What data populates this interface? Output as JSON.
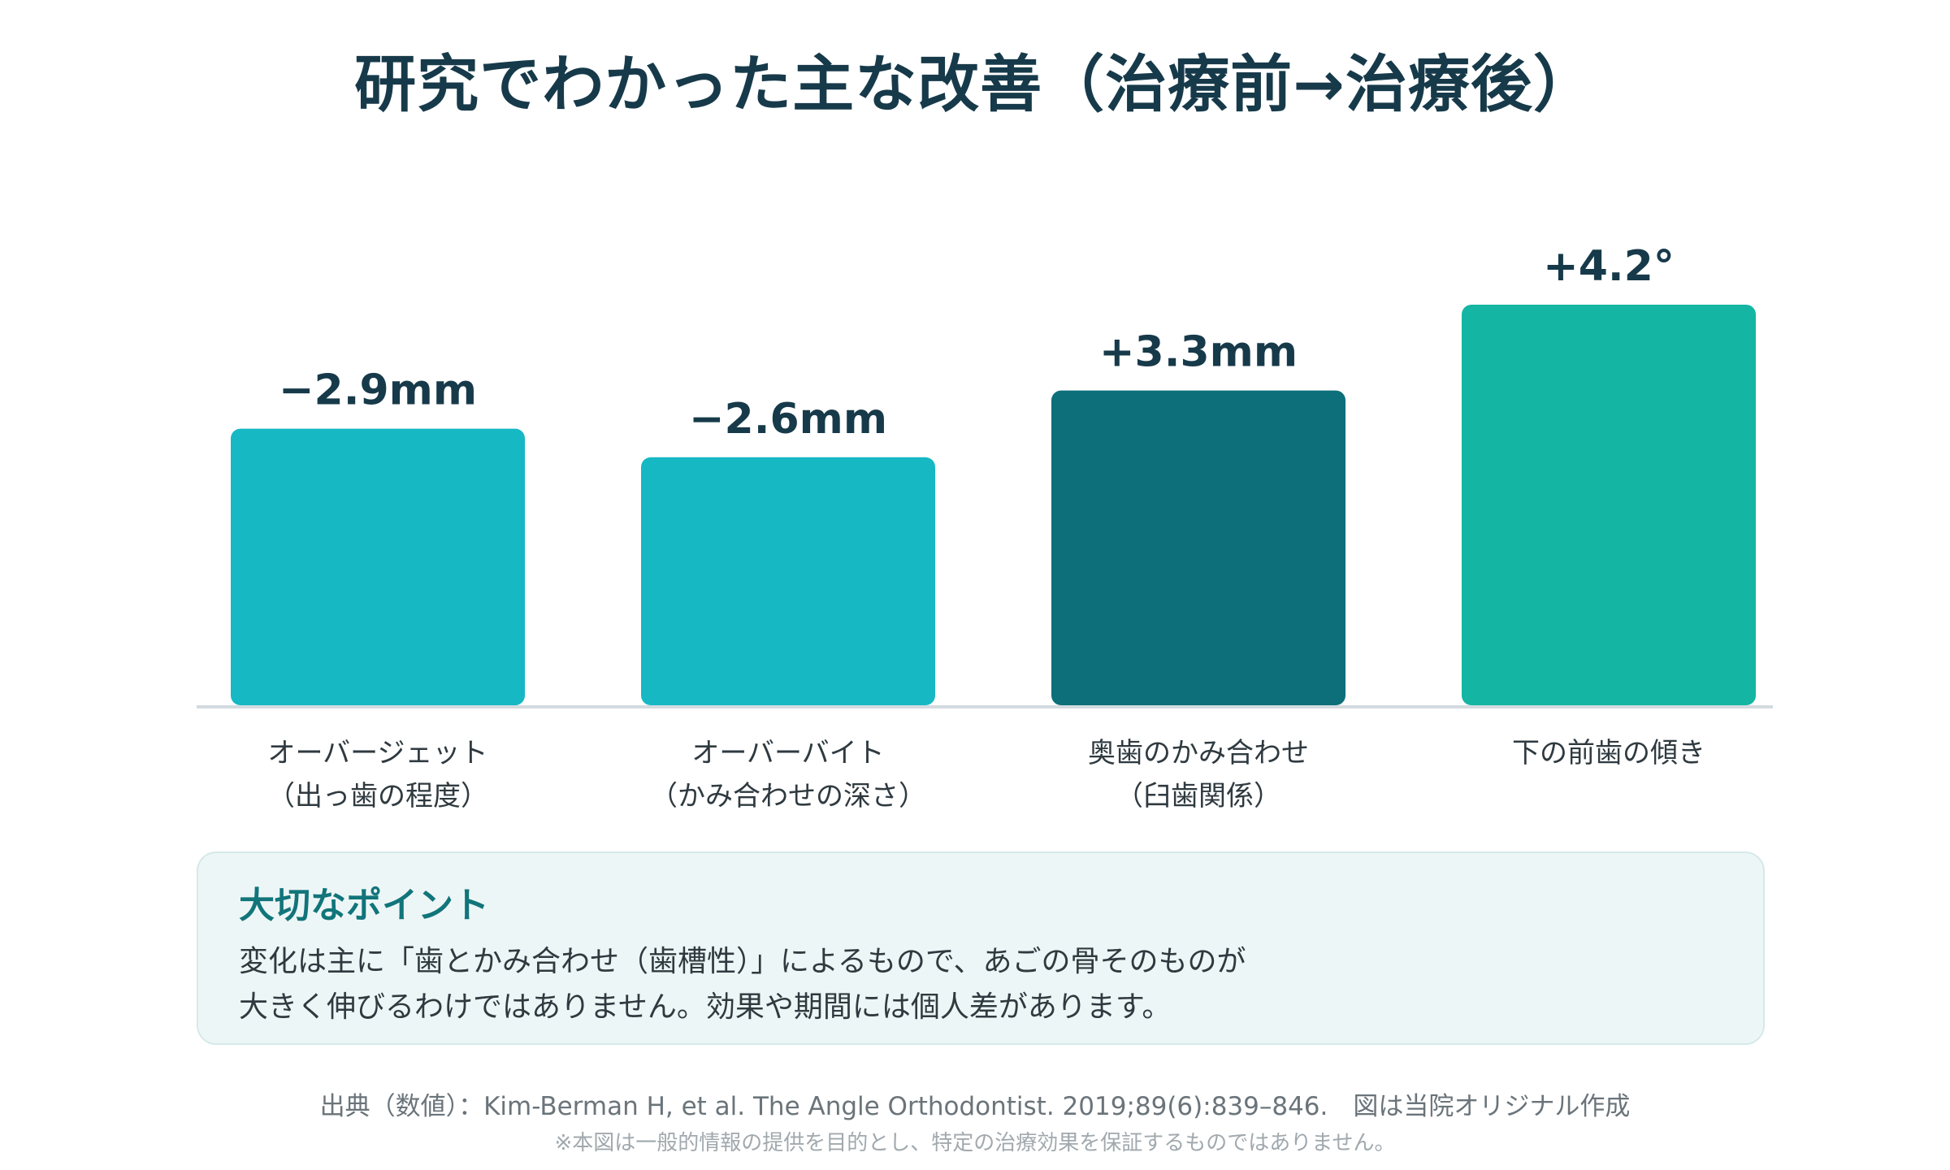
{
  "title": "研究でわかった主な改善（治療前→治療後）",
  "chart_data": {
    "type": "bar",
    "title": "研究でわかった主な改善（治療前→治療後）",
    "categories": [
      [
        "オーバージェット",
        "（出っ歯の程度）"
      ],
      [
        "オーバーバイト",
        "（かみ合わせの深さ）"
      ],
      [
        "奥歯のかみ合わせ",
        "（臼歯関係）"
      ],
      [
        "下の前歯の傾き"
      ]
    ],
    "values": [
      2.9,
      2.6,
      3.3,
      4.2
    ],
    "value_labels": [
      "−2.9mm",
      "−2.6mm",
      "+3.3mm",
      "+4.2°"
    ],
    "bar_colors": [
      "#16b8c4",
      "#16b8c4",
      "#0c6f7a",
      "#14b5a3"
    ],
    "ylim": [
      0,
      4.6
    ],
    "grid": false,
    "xlabel": "",
    "ylabel": ""
  },
  "callout": {
    "title": "大切なポイント",
    "lines": [
      "変化は主に「歯とかみ合わせ（歯槽性）」によるもので、あごの骨そのものが",
      "大きく伸びるわけではありません。効果や期間には個人差があります。"
    ]
  },
  "source": "出典（数値）：Kim-Berman H, et al. The Angle Orthodontist. 2019;89(6):839–846.　図は当院オリジナル作成",
  "disclaimer": "※本図は一般的情報の提供を目的とし、特定の治療効果を保証するものではありません。",
  "colors": {
    "title": "#173a4a",
    "baseline": "#d3dbe0",
    "callout_bg": "#edf6f6",
    "callout_title": "#11757a"
  }
}
